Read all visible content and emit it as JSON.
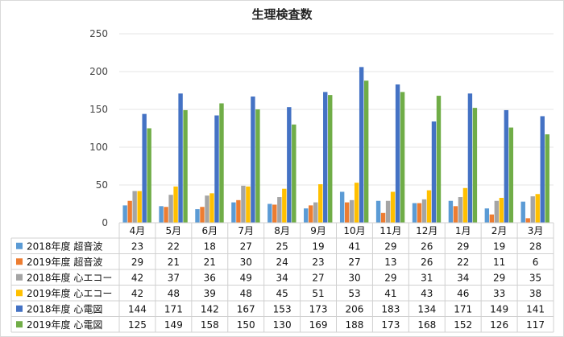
{
  "chart_data": {
    "type": "bar",
    "title": "生理検査数",
    "categories": [
      "4月",
      "5月",
      "6月",
      "7月",
      "8月",
      "9月",
      "10月",
      "11月",
      "12月",
      "1月",
      "2月",
      "3月"
    ],
    "ylim": [
      0,
      250
    ],
    "yticks": [
      0,
      50,
      100,
      150,
      200,
      250
    ],
    "grid": true,
    "legend_placement": "bottom data table",
    "series": [
      {
        "name": "2018年度 超音波",
        "color": "#5b9bd5",
        "values": [
          23,
          22,
          18,
          27,
          25,
          19,
          41,
          29,
          26,
          29,
          19,
          28
        ]
      },
      {
        "name": "2019年度 超音波",
        "color": "#ed7d31",
        "values": [
          29,
          21,
          21,
          30,
          24,
          23,
          27,
          13,
          26,
          22,
          11,
          6
        ]
      },
      {
        "name": "2018年度 心エコー",
        "color": "#a5a5a5",
        "values": [
          42,
          37,
          36,
          49,
          34,
          27,
          30,
          29,
          31,
          34,
          29,
          35
        ]
      },
      {
        "name": "2019年度 心エコー",
        "color": "#ffc000",
        "values": [
          42,
          48,
          39,
          48,
          45,
          51,
          53,
          41,
          43,
          46,
          33,
          38
        ]
      },
      {
        "name": "2018年度 心電図",
        "color": "#4472c4",
        "values": [
          144,
          171,
          142,
          167,
          153,
          173,
          206,
          183,
          134,
          171,
          149,
          141
        ]
      },
      {
        "name": "2019年度 心電図",
        "color": "#70ad47",
        "values": [
          125,
          149,
          158,
          150,
          130,
          169,
          188,
          173,
          168,
          152,
          126,
          117
        ]
      }
    ]
  }
}
